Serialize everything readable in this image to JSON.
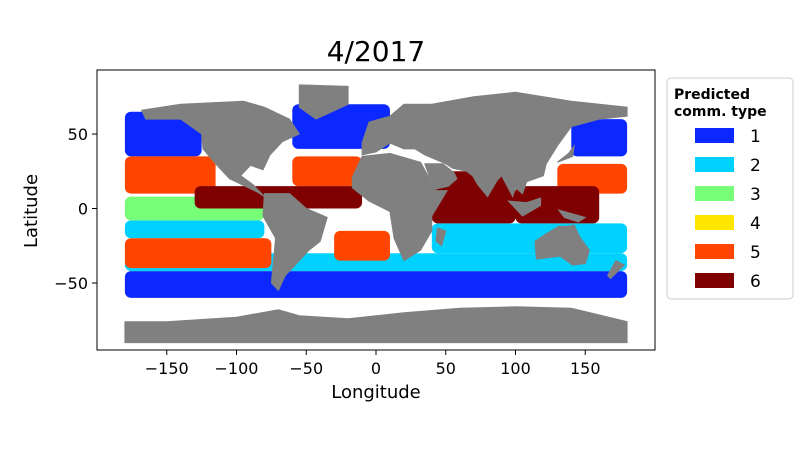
{
  "title": "4/2017",
  "xlabel": "Longitude",
  "ylabel": "Latitude",
  "x_ticks": [
    -150,
    -100,
    -50,
    0,
    50,
    100,
    150
  ],
  "y_ticks": [
    50,
    0,
    -50
  ],
  "x_tick_labels": [
    "−150",
    "−100",
    "−50",
    "0",
    "50",
    "100",
    "150"
  ],
  "y_tick_labels": [
    "50",
    "0",
    "−50"
  ],
  "xlim": [
    -200,
    200
  ],
  "ylim": [
    -95,
    93
  ],
  "land_color": "#808080",
  "legend": {
    "title_line1": "Predicted",
    "title_line2": "comm. type",
    "placement": "outside-right",
    "items": [
      {
        "label": "1",
        "color": "#0a28ff"
      },
      {
        "label": "2",
        "color": "#00d2ff"
      },
      {
        "label": "3",
        "color": "#78ff78"
      },
      {
        "label": "4",
        "color": "#ffe600"
      },
      {
        "label": "5",
        "color": "#ff4500"
      },
      {
        "label": "6",
        "color": "#7f0000"
      }
    ]
  },
  "chart_data": {
    "type": "scatter",
    "title": "4/2017",
    "xlabel": "Longitude",
    "ylabel": "Latitude",
    "xlim": [
      -200,
      200
    ],
    "ylim": [
      -95,
      93
    ],
    "grid": false,
    "legend_placement": "outside-right",
    "regions": [
      {
        "type": "1",
        "lon": [
          -180,
          180
        ],
        "lat": [
          -60,
          -42
        ]
      },
      {
        "type": "1",
        "lon": [
          -180,
          -125
        ],
        "lat": [
          35,
          65
        ]
      },
      {
        "type": "1",
        "lon": [
          -60,
          10
        ],
        "lat": [
          40,
          70
        ]
      },
      {
        "type": "1",
        "lon": [
          140,
          180
        ],
        "lat": [
          35,
          60
        ]
      },
      {
        "type": "2",
        "lon": [
          -180,
          180
        ],
        "lat": [
          -42,
          -30
        ]
      },
      {
        "type": "2",
        "lon": [
          -180,
          -80
        ],
        "lat": [
          -20,
          -8
        ]
      },
      {
        "type": "2",
        "lon": [
          40,
          180
        ],
        "lat": [
          -30,
          -10
        ]
      },
      {
        "type": "3",
        "lon": [
          -180,
          -80
        ],
        "lat": [
          -8,
          8
        ]
      },
      {
        "type": "5",
        "lon": [
          -180,
          -115
        ],
        "lat": [
          10,
          35
        ]
      },
      {
        "type": "5",
        "lon": [
          -180,
          -75
        ],
        "lat": [
          -40,
          -20
        ]
      },
      {
        "type": "5",
        "lon": [
          -60,
          -10
        ],
        "lat": [
          15,
          35
        ]
      },
      {
        "type": "5",
        "lon": [
          -30,
          10
        ],
        "lat": [
          -35,
          -15
        ]
      },
      {
        "type": "5",
        "lon": [
          130,
          180
        ],
        "lat": [
          10,
          30
        ]
      },
      {
        "type": "6",
        "lon": [
          40,
          100
        ],
        "lat": [
          -10,
          25
        ]
      },
      {
        "type": "6",
        "lon": [
          -130,
          -10
        ],
        "lat": [
          0,
          15
        ]
      },
      {
        "type": "6",
        "lon": [
          100,
          160
        ],
        "lat": [
          -10,
          15
        ]
      }
    ]
  }
}
